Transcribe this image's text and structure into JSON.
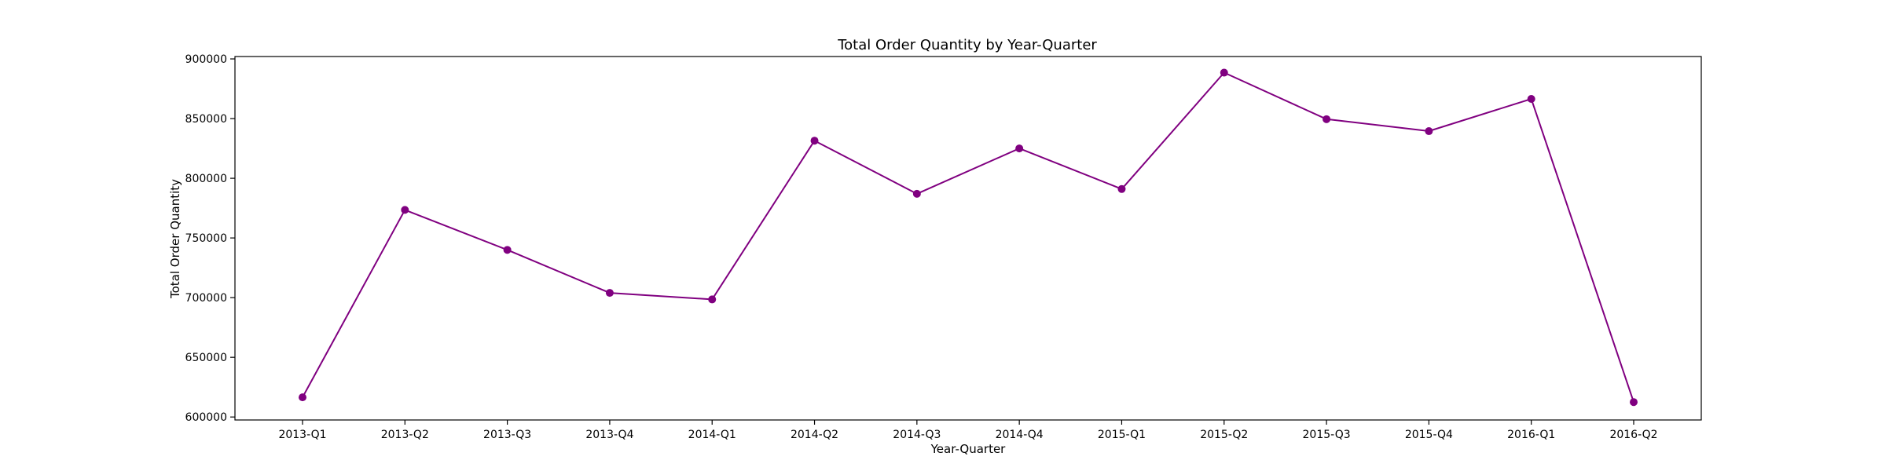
{
  "chart_data": {
    "type": "line",
    "title": "Total Order Quantity by Year-Quarter",
    "xlabel": "Year-Quarter",
    "ylabel": "Total Order Quantity",
    "categories": [
      "2013-Q1",
      "2013-Q2",
      "2013-Q3",
      "2013-Q4",
      "2014-Q1",
      "2014-Q2",
      "2014-Q3",
      "2014-Q4",
      "2015-Q1",
      "2015-Q2",
      "2015-Q3",
      "2015-Q4",
      "2016-Q1",
      "2016-Q2"
    ],
    "values": [
      616500,
      773500,
      740000,
      704000,
      698500,
      831500,
      787000,
      825000,
      791000,
      888500,
      849500,
      839500,
      866500,
      612500
    ],
    "ylim": [
      597500,
      902000
    ],
    "yticks": [
      600000,
      650000,
      700000,
      750000,
      800000,
      850000,
      900000
    ],
    "ytick_labels": [
      "600000",
      "650000",
      "700000",
      "750000",
      "800000",
      "850000",
      "900000"
    ],
    "line_color": "#800080",
    "marker": "circle",
    "grid": false,
    "legend": "none"
  }
}
